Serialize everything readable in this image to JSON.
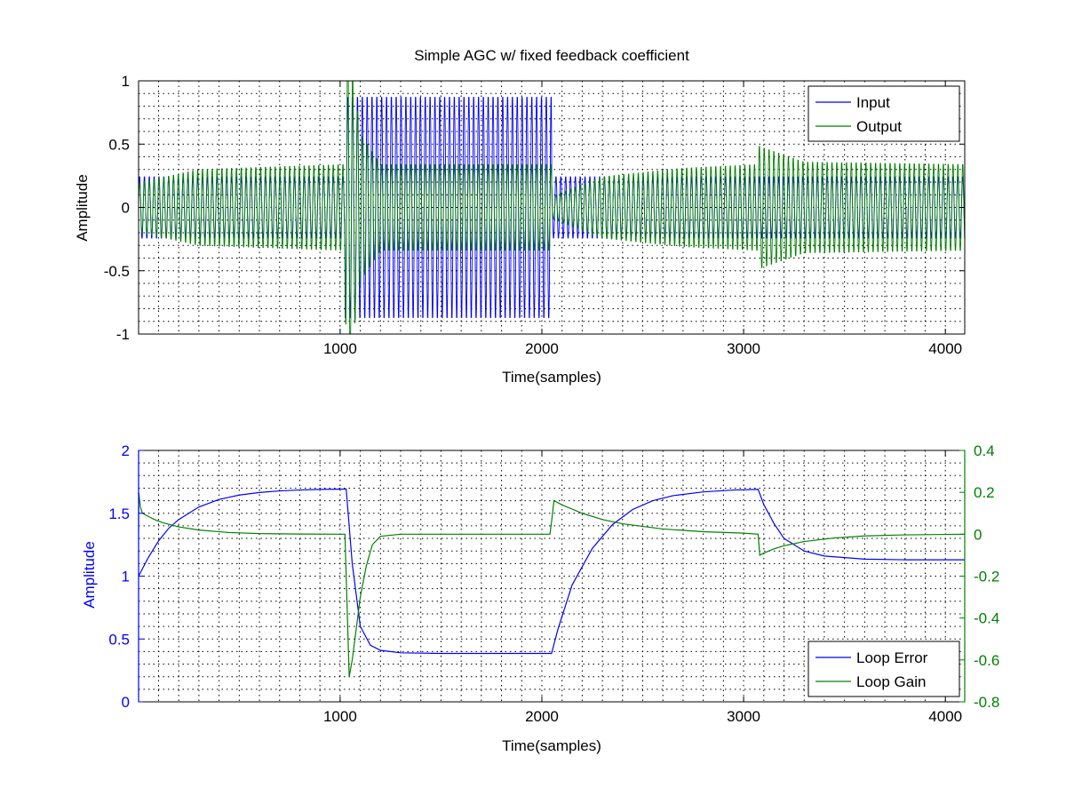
{
  "figure": {
    "background": "#ffffff"
  },
  "chart_data": [
    {
      "type": "line",
      "title": "Simple AGC w/ fixed feedback coefficient",
      "xlabel": "Time(samples)",
      "ylabel": "Amplitude",
      "xlim": [
        1,
        4096
      ],
      "ylim": [
        -1,
        1
      ],
      "xticks": [
        1000,
        2000,
        3000,
        4000
      ],
      "xtick_labels": [
        "1000",
        "2000",
        "3000",
        "4000"
      ],
      "yticks": [
        -1,
        -0.5,
        0,
        0.5,
        1
      ],
      "ytick_labels": [
        "-1",
        "-0.5",
        "0",
        "0.5",
        "1"
      ],
      "grid": true,
      "legend": "top-right",
      "series": [
        {
          "name": "Input",
          "color": "#0000ff",
          "style": "oscillation",
          "envelope": [
            {
              "x": 1,
              "amp": 0.25
            },
            {
              "x": 1024,
              "amp": 0.25
            },
            {
              "x": 1025,
              "amp": 0.9
            },
            {
              "x": 2048,
              "amp": 0.9
            },
            {
              "x": 2049,
              "amp": 0.25
            },
            {
              "x": 4096,
              "amp": 0.25
            }
          ],
          "period": 24
        },
        {
          "name": "Output",
          "color": "#008000",
          "style": "oscillation",
          "envelope": [
            {
              "x": 1,
              "amp": 0.2
            },
            {
              "x": 300,
              "amp": 0.31
            },
            {
              "x": 1024,
              "amp": 0.35
            },
            {
              "x": 1030,
              "amp": 1.5
            },
            {
              "x": 1100,
              "amp": 0.6
            },
            {
              "x": 1200,
              "amp": 0.35
            },
            {
              "x": 2048,
              "amp": 0.35
            },
            {
              "x": 2050,
              "amp": 0.09
            },
            {
              "x": 2300,
              "amp": 0.25
            },
            {
              "x": 2700,
              "amp": 0.32
            },
            {
              "x": 3072,
              "amp": 0.35
            },
            {
              "x": 3075,
              "amp": 0.5
            },
            {
              "x": 3300,
              "amp": 0.37
            },
            {
              "x": 4096,
              "amp": 0.35
            }
          ],
          "period": 24
        }
      ]
    },
    {
      "type": "line",
      "xlabel": "Time(samples)",
      "ylabel": "Amplitude",
      "xlim": [
        1,
        4096
      ],
      "ylim": [
        0,
        2
      ],
      "y2lim": [
        -0.8,
        0.4
      ],
      "xticks": [
        1000,
        2000,
        3000,
        4000
      ],
      "xtick_labels": [
        "1000",
        "2000",
        "3000",
        "4000"
      ],
      "yticks": [
        0,
        0.5,
        1,
        1.5,
        2
      ],
      "ytick_labels": [
        "0",
        "0.5",
        "1",
        "1.5",
        "2"
      ],
      "y2ticks": [
        -0.8,
        -0.6,
        -0.4,
        -0.2,
        0,
        0.2,
        0.4
      ],
      "y2tick_labels": [
        "-0.8",
        "-0.6",
        "-0.4",
        "-0.2",
        "0",
        "0.2",
        "0.4"
      ],
      "left_axis_color": "#0000ff",
      "right_axis_color": "#008000",
      "grid": true,
      "legend": "bottom-right",
      "series": [
        {
          "name": "Loop Error",
          "color": "#0000ff",
          "axis": "left",
          "x": [
            1,
            50,
            100,
            150,
            200,
            300,
            400,
            500,
            600,
            700,
            800,
            900,
            1000,
            1030,
            1060,
            1100,
            1150,
            1200,
            1300,
            1500,
            1800,
            2048,
            2080,
            2150,
            2250,
            2350,
            2450,
            2550,
            2650,
            2800,
            2950,
            3072,
            3100,
            3150,
            3200,
            3300,
            3400,
            3600,
            3800,
            4096
          ],
          "y": [
            1.0,
            1.15,
            1.28,
            1.38,
            1.45,
            1.55,
            1.61,
            1.645,
            1.665,
            1.678,
            1.685,
            1.69,
            1.692,
            1.693,
            1.1,
            0.6,
            0.45,
            0.41,
            0.39,
            0.385,
            0.385,
            0.385,
            0.58,
            0.93,
            1.22,
            1.41,
            1.53,
            1.6,
            1.64,
            1.67,
            1.685,
            1.69,
            1.57,
            1.42,
            1.3,
            1.2,
            1.16,
            1.135,
            1.13,
            1.13
          ]
        },
        {
          "name": "Loop Gain",
          "color": "#008000",
          "axis": "right",
          "x": [
            1,
            2,
            10,
            20,
            40,
            60,
            80,
            120,
            200,
            300,
            450,
            600,
            800,
            1000,
            1024,
            1030,
            1045,
            1060,
            1080,
            1100,
            1130,
            1160,
            1200,
            1300,
            1500,
            1800,
            2040,
            2048,
            2060,
            2100,
            2200,
            2300,
            2400,
            2600,
            2800,
            3000,
            3072,
            3080,
            3100,
            3150,
            3200,
            3300,
            3450,
            3600,
            3800,
            4096
          ],
          "y": [
            0,
            0.2,
            0.13,
            0.1,
            0.09,
            0.08,
            0.07,
            0.055,
            0.035,
            0.02,
            0.008,
            0.003,
            0.001,
            0.0,
            0.0,
            -0.2,
            -0.68,
            -0.6,
            -0.45,
            -0.3,
            -0.15,
            -0.05,
            -0.01,
            0.0,
            0.0,
            0.0,
            0.0,
            0.06,
            0.16,
            0.14,
            0.1,
            0.07,
            0.05,
            0.025,
            0.012,
            0.005,
            0.0,
            -0.1,
            -0.09,
            -0.07,
            -0.055,
            -0.035,
            -0.018,
            -0.008,
            -0.003,
            0.0
          ]
        }
      ]
    }
  ]
}
